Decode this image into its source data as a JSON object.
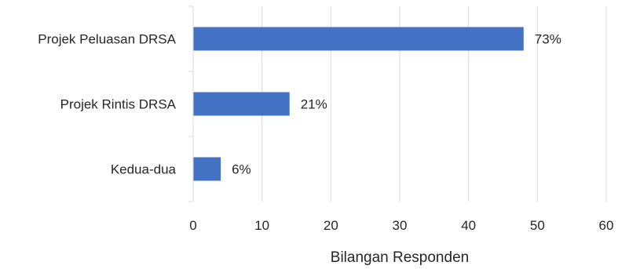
{
  "chart_data": {
    "type": "bar",
    "orientation": "horizontal",
    "categories": [
      "Projek Peluasan DRSA",
      "Projek Rintis DRSA",
      "Kedua-dua"
    ],
    "values": [
      48,
      14,
      4
    ],
    "data_labels": [
      "73%",
      "21%",
      "6%"
    ],
    "xlabel": "Bilangan Responden",
    "ylabel": "",
    "title": "",
    "xlim": [
      0,
      60
    ],
    "xticks": [
      0,
      10,
      20,
      30,
      40,
      50,
      60
    ],
    "grid": "vertical",
    "legend": "none",
    "bar_color": "#4472C4",
    "grid_color": "#D9D9D9"
  }
}
